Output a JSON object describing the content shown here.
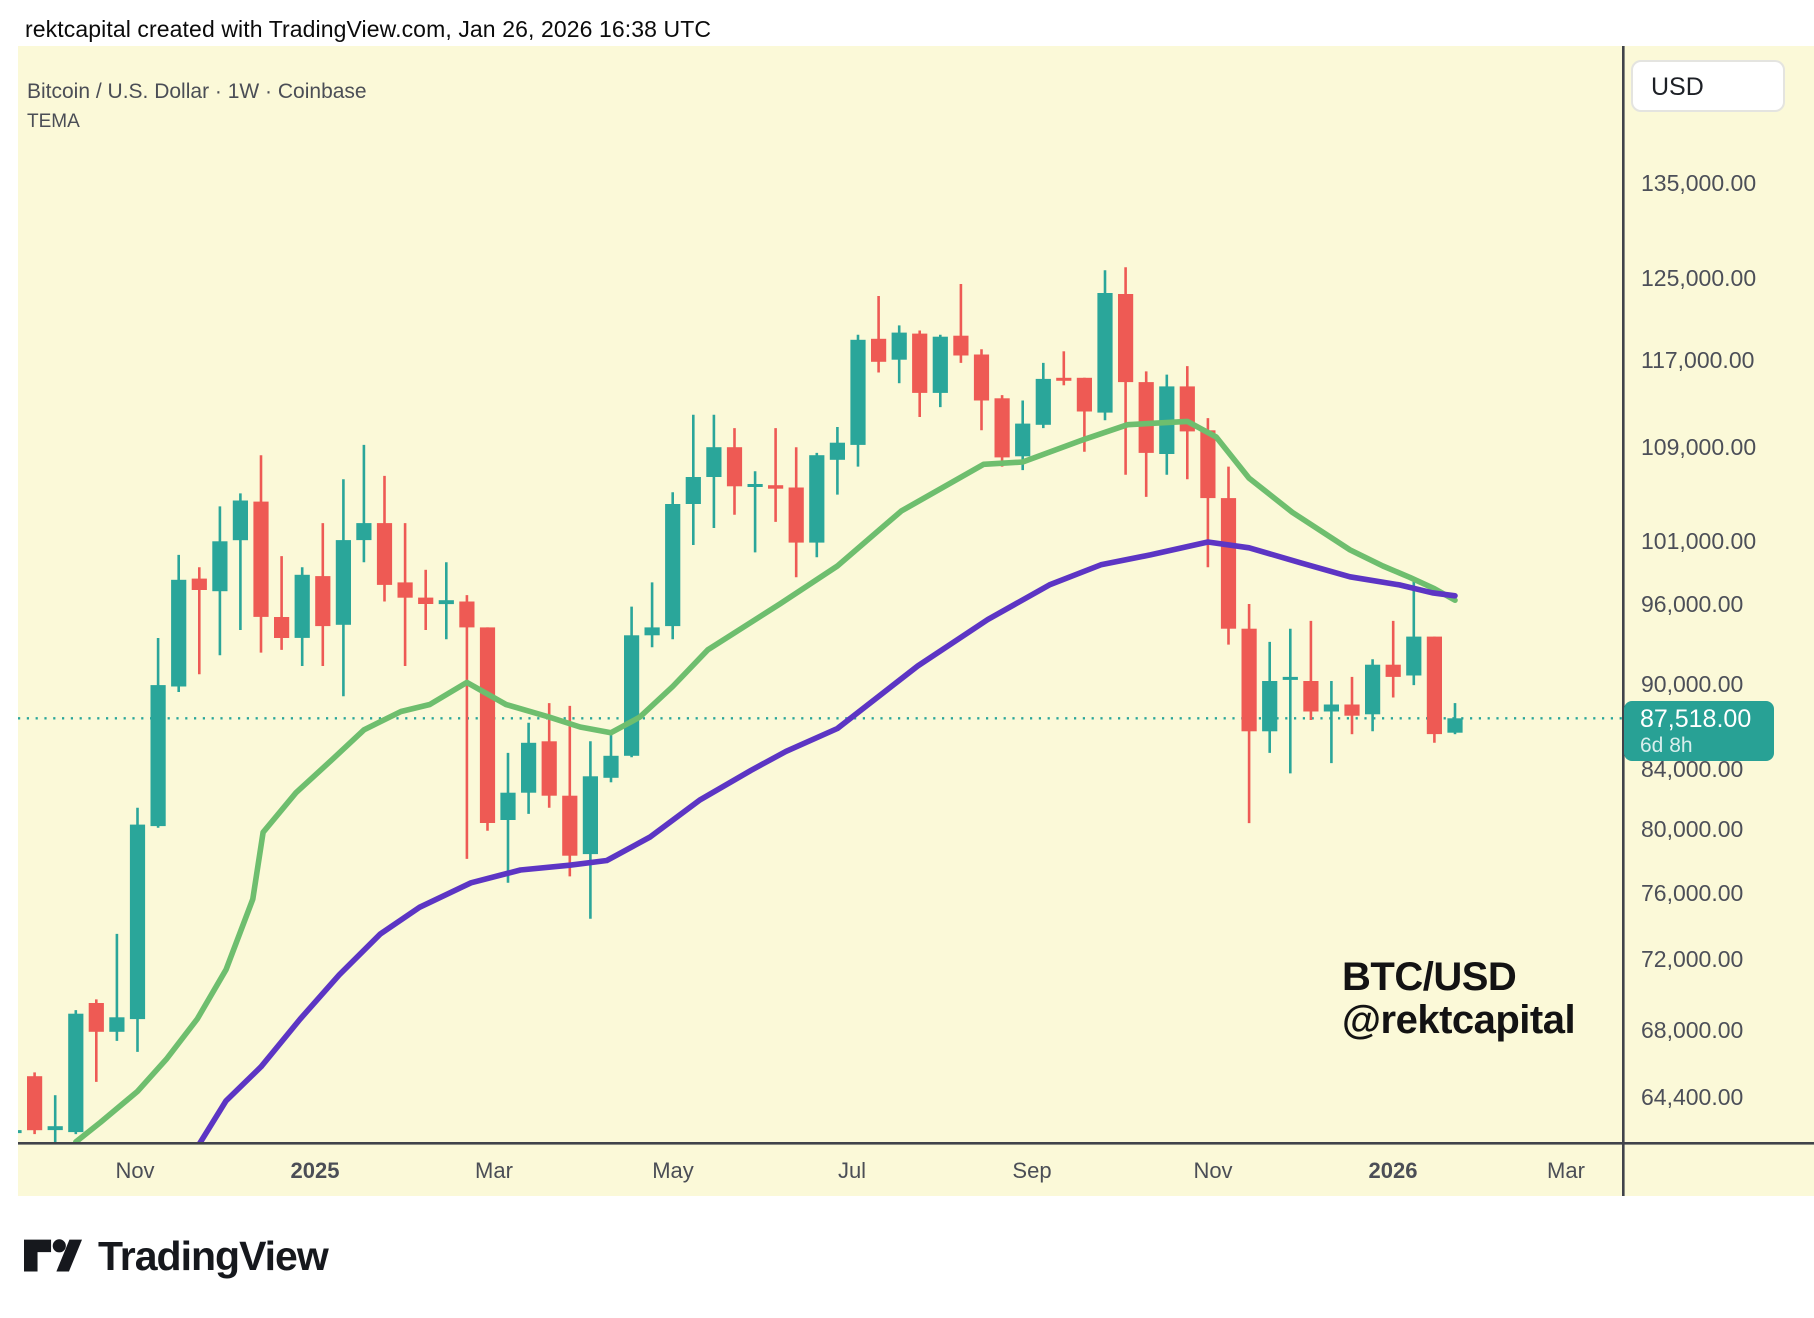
{
  "top_bar": {
    "attribution": "rektcapital created with TradingView.com, Jan 26, 2026 16:38 UTC"
  },
  "header": {
    "symbol_title": "Bitcoin / U.S. Dollar · 1W · Coinbase",
    "indicator_label": "TEMA"
  },
  "price_axis": {
    "currency_button_label": "USD",
    "labels": [
      {
        "text": "135,000.00",
        "value": 135000
      },
      {
        "text": "125,000.00",
        "value": 125000
      },
      {
        "text": "117,000.00",
        "value": 117000
      },
      {
        "text": "109,000.00",
        "value": 109000
      },
      {
        "text": "101,000.00",
        "value": 101000
      },
      {
        "text": "96,000.00",
        "value": 96000
      },
      {
        "text": "90,000.00",
        "value": 90000
      },
      {
        "text": "84,000.00",
        "value": 84000
      },
      {
        "text": "80,000.00",
        "value": 80000
      },
      {
        "text": "76,000.00",
        "value": 76000
      },
      {
        "text": "72,000.00",
        "value": 72000
      },
      {
        "text": "68,000.00",
        "value": 68000
      },
      {
        "text": "64,400.00",
        "value": 64400
      }
    ]
  },
  "last_price_badge": {
    "price_text": "87,518.00",
    "countdown": "6d 8h",
    "value": 87518
  },
  "time_axis": {
    "labels": [
      {
        "text": "Nov",
        "week": 5.88,
        "year": false
      },
      {
        "text": "2025",
        "week": 14.62,
        "year": true
      },
      {
        "text": "Mar",
        "week": 23.32,
        "year": false
      },
      {
        "text": "May",
        "week": 32.01,
        "year": false
      },
      {
        "text": "Jul",
        "week": 40.71,
        "year": false
      },
      {
        "text": "Sep",
        "week": 49.45,
        "year": false
      },
      {
        "text": "Nov",
        "week": 58.24,
        "year": false
      },
      {
        "text": "2026",
        "week": 66.99,
        "year": true
      },
      {
        "text": "Mar",
        "week": 75.39,
        "year": false
      }
    ]
  },
  "watermark": {
    "line1": "BTC/USD",
    "line2": "@rektcapital"
  },
  "footer": {
    "brand": "TradingView"
  },
  "colors": {
    "background": "#fbf9d8",
    "up_candle": "#2aa69a",
    "down_candle": "#ee5a54",
    "tema_green": "#6ebe6e",
    "tema_purple": "#5c35c4",
    "price_line": "#2aa69a",
    "badge": "#28a195",
    "axis_line": "#40434a",
    "axis_text": "#4c4f58"
  },
  "chart_data": {
    "type": "candlestick",
    "title": "Bitcoin / U.S. Dollar",
    "symbol": "BTC/USD",
    "interval": "1W",
    "exchange": "Coinbase",
    "indicator": "TEMA",
    "y_scale": "log",
    "y_axis_ticks": [
      135000,
      125000,
      117000,
      109000,
      101000,
      96000,
      90000,
      84000,
      80000,
      76000,
      72000,
      68000,
      64400
    ],
    "x_axis_ticks": [
      "Nov",
      "2025",
      "Mar",
      "May",
      "Jul",
      "Sep",
      "Nov",
      "2026",
      "Mar"
    ],
    "last_price": 87518,
    "last_bar_countdown": "6d 8h",
    "candles_ohlc": [
      [
        62600,
        64500,
        62400,
        62700
      ],
      [
        65500,
        65700,
        62500,
        62700
      ],
      [
        62700,
        64500,
        62000,
        62900
      ],
      [
        62600,
        69100,
        62500,
        68900
      ],
      [
        69500,
        69700,
        65200,
        67900
      ],
      [
        67900,
        73500,
        67400,
        68700
      ],
      [
        68600,
        81400,
        66800,
        80300
      ],
      [
        80200,
        93400,
        80100,
        89900
      ],
      [
        89800,
        99900,
        89400,
        97900
      ],
      [
        98000,
        98900,
        90700,
        97100
      ],
      [
        97000,
        103900,
        92100,
        101000
      ],
      [
        101100,
        105000,
        94000,
        104400
      ],
      [
        104300,
        108300,
        92300,
        95000
      ],
      [
        95000,
        99800,
        92500,
        93400
      ],
      [
        93400,
        98900,
        91300,
        98300
      ],
      [
        98200,
        102500,
        91300,
        94300
      ],
      [
        94400,
        106200,
        89100,
        101100
      ],
      [
        101100,
        109200,
        99300,
        102500
      ],
      [
        102500,
        106500,
        96200,
        97500
      ],
      [
        97700,
        102500,
        91300,
        96500
      ],
      [
        96500,
        98700,
        94000,
        96000
      ],
      [
        96000,
        99300,
        93300,
        96300
      ],
      [
        96200,
        96700,
        78100,
        94200
      ],
      [
        94200,
        94200,
        79900,
        80400
      ],
      [
        80600,
        85100,
        76600,
        82400
      ],
      [
        82400,
        87200,
        81000,
        85800
      ],
      [
        85900,
        88600,
        81400,
        82200
      ],
      [
        82200,
        88400,
        77000,
        78300
      ],
      [
        78400,
        85900,
        74400,
        83500
      ],
      [
        83400,
        86500,
        83100,
        84900
      ],
      [
        84900,
        95800,
        84800,
        93600
      ],
      [
        93600,
        97700,
        92700,
        94200
      ],
      [
        94300,
        105100,
        93300,
        104100
      ],
      [
        104100,
        111900,
        100700,
        106400
      ],
      [
        106400,
        111900,
        102100,
        109000
      ],
      [
        109000,
        110700,
        103200,
        105600
      ],
      [
        105700,
        106900,
        100100,
        105800
      ],
      [
        105700,
        110700,
        102600,
        105400
      ],
      [
        105500,
        109000,
        98100,
        100900
      ],
      [
        100900,
        108500,
        99700,
        108300
      ],
      [
        107900,
        110800,
        104900,
        109400
      ],
      [
        109200,
        119400,
        107300,
        118900
      ],
      [
        119000,
        123200,
        115800,
        116800
      ],
      [
        117000,
        120300,
        114800,
        119600
      ],
      [
        119500,
        119800,
        111700,
        113900
      ],
      [
        113900,
        119400,
        112600,
        119200
      ],
      [
        119300,
        124400,
        116700,
        117400
      ],
      [
        117500,
        118000,
        110500,
        113200
      ],
      [
        113400,
        113700,
        107300,
        108100
      ],
      [
        108200,
        113200,
        107000,
        111100
      ],
      [
        111000,
        116700,
        110700,
        115200
      ],
      [
        115300,
        117800,
        114600,
        115100
      ],
      [
        115300,
        115300,
        108600,
        112200
      ],
      [
        112100,
        125800,
        111400,
        123500
      ],
      [
        123400,
        126100,
        106600,
        114900
      ],
      [
        114900,
        115900,
        104700,
        108500
      ],
      [
        108400,
        115600,
        106600,
        114500
      ],
      [
        114500,
        116400,
        106200,
        110400
      ],
      [
        110500,
        111600,
        98900,
        104600
      ],
      [
        104600,
        107300,
        92900,
        94100
      ],
      [
        94100,
        96000,
        80400,
        86600
      ],
      [
        86600,
        93100,
        85100,
        90200
      ],
      [
        90400,
        94100,
        83700,
        90500
      ],
      [
        90200,
        94700,
        87400,
        88000
      ],
      [
        88000,
        90200,
        84400,
        88500
      ],
      [
        88500,
        90500,
        86400,
        87700
      ],
      [
        87800,
        91800,
        86600,
        91400
      ],
      [
        91400,
        94700,
        89000,
        90500
      ],
      [
        90600,
        97800,
        89900,
        93500
      ],
      [
        93500,
        93500,
        85800,
        86400
      ],
      [
        86500,
        88600,
        86400,
        87518
      ]
    ],
    "tema_green_points": [
      [
        3.0,
        62100
      ],
      [
        4.2,
        63100
      ],
      [
        6.0,
        64700
      ],
      [
        7.4,
        66400
      ],
      [
        8.9,
        68600
      ],
      [
        10.3,
        71400
      ],
      [
        11.6,
        75600
      ],
      [
        12.1,
        79800
      ],
      [
        13.7,
        82400
      ],
      [
        15.5,
        84700
      ],
      [
        17.0,
        86700
      ],
      [
        18.8,
        88000
      ],
      [
        20.2,
        88500
      ],
      [
        22.0,
        90100
      ],
      [
        23.9,
        88500
      ],
      [
        26.0,
        87600
      ],
      [
        27.5,
        86900
      ],
      [
        29.0,
        86500
      ],
      [
        30.4,
        87600
      ],
      [
        32.0,
        89800
      ],
      [
        33.7,
        92500
      ],
      [
        37.2,
        96000
      ],
      [
        40.0,
        99000
      ],
      [
        43.1,
        103500
      ],
      [
        47.1,
        107500
      ],
      [
        49.0,
        107700
      ],
      [
        52.0,
        109700
      ],
      [
        54.1,
        111000
      ],
      [
        57.0,
        111300
      ],
      [
        58.4,
        109900
      ],
      [
        60.0,
        106300
      ],
      [
        62.1,
        103400
      ],
      [
        64.9,
        100300
      ],
      [
        66.5,
        99000
      ],
      [
        67.8,
        98100
      ],
      [
        69.0,
        97200
      ],
      [
        70.0,
        96300
      ]
    ],
    "tema_purple_points": [
      [
        9.0,
        62000
      ],
      [
        10.3,
        64200
      ],
      [
        12.0,
        66000
      ],
      [
        13.9,
        68600
      ],
      [
        15.8,
        71100
      ],
      [
        17.8,
        73500
      ],
      [
        19.7,
        75100
      ],
      [
        22.2,
        76600
      ],
      [
        24.6,
        77400
      ],
      [
        27.0,
        77700
      ],
      [
        28.8,
        78000
      ],
      [
        30.9,
        79500
      ],
      [
        33.3,
        81900
      ],
      [
        35.8,
        83900
      ],
      [
        37.5,
        85200
      ],
      [
        40.0,
        86800
      ],
      [
        43.9,
        91300
      ],
      [
        47.3,
        94800
      ],
      [
        50.3,
        97500
      ],
      [
        52.8,
        99100
      ],
      [
        55.2,
        99900
      ],
      [
        58.0,
        100950
      ],
      [
        60.0,
        100470
      ],
      [
        62.5,
        99260
      ],
      [
        64.9,
        98140
      ],
      [
        67.3,
        97500
      ],
      [
        68.9,
        96880
      ],
      [
        70.0,
        96640
      ]
    ]
  }
}
